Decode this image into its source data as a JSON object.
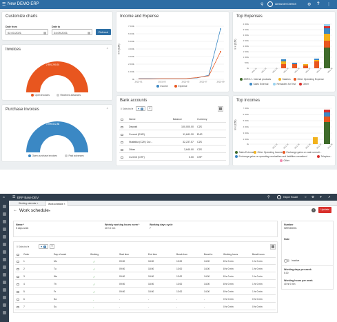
{
  "top": {
    "app_title": "New DEMO ERP",
    "user_name": "Alexander Dietrich",
    "customize": {
      "title": "Customize charts",
      "date_from_label": "Date from",
      "date_from": "02.03.2021",
      "date_to_label": "Date to",
      "date_to": "24.09.2021",
      "refresh": "Refresh"
    },
    "invoices": {
      "title": "Invoices",
      "gauge_value": "2 891 290,91",
      "legend": [
        "Open invoices",
        "Received advances"
      ]
    },
    "purchase_invoices": {
      "title": "Purchase invoices",
      "gauge_value": "3 999 822,88",
      "legend": [
        "Open purchase invoices",
        "Paid advances"
      ]
    },
    "income_expense": {
      "title": "Income and Expense",
      "ylabel": "In k (CZK)",
      "legend": [
        "Income",
        "Expense"
      ]
    },
    "bank_accounts": {
      "title": "Bank accounts",
      "selected": "0 Selected",
      "filter_count": "0",
      "headers": [
        "Name",
        "Balance",
        "Currency"
      ],
      "rows": [
        {
          "name": "Deposit",
          "balance": "100,000.00",
          "currency": "CZK"
        },
        {
          "name": "Current (EUR)",
          "balance": "11,841.20",
          "currency": "EUR"
        },
        {
          "name": "Nustatka (CZK) Cur...",
          "balance": "32,237.57",
          "currency": "CZK"
        },
        {
          "name": "Other",
          "balance": "3,640.00",
          "currency": "CZK"
        },
        {
          "name": "Current (CHF)",
          "balance": "0.00",
          "currency": "CHF"
        }
      ]
    },
    "top_expenses": {
      "title": "Top Expenses",
      "ylabel": "In k (CZK)",
      "legend": [
        "ZDROJ - Internal products",
        "Salaries",
        "Other Operating Expense",
        "Sales External",
        "Remaotes for Test",
        "Other"
      ]
    },
    "top_incomes": {
      "title": "Top Incomes",
      "ylabel": "In k (CZK)",
      "legend": [
        "Sales External",
        "Other Operating Income",
        "Exchange gains on cash unreali...",
        "Exchange gains on operating receivables and liabilities unrealized",
        "Telephon...",
        "Other"
      ]
    }
  },
  "bottom": {
    "app_title": "ERP Base DEV",
    "user_name": "Hayne Hussel",
    "tabs": [
      "Working calendar",
      "Work schedule"
    ],
    "page_title": "Work schedule",
    "update_button": "Update",
    "form": {
      "name_label": "Name *",
      "name_value": "5 days week",
      "hours_label": "Weekly working hours norm *",
      "hours_value": "40 h 0 min",
      "cycle_label": "Working days cycle",
      "cycle_value": "7"
    },
    "side": {
      "number_label": "Number",
      "number_value": "WRK000001",
      "note_label": "Note",
      "inactive_label": "Inactive",
      "days_label": "Working days per week",
      "days_value": "5.00",
      "hours_label": "Working hours per week",
      "hours_value": "40 hr 0 min"
    },
    "grid": {
      "selected": "0 Selected",
      "filter_count": "0",
      "headers": [
        "Order",
        "Day of week",
        "Working",
        "Start time",
        "End time",
        "Break from",
        "Break to",
        "Working hours",
        "Break hours"
      ],
      "rows": [
        {
          "order": "1",
          "day": "Mo",
          "working": true,
          "start": "09:00",
          "end": "18:00",
          "bfrom": "13:00",
          "bto": "14:00",
          "wh": "8 hr 0 min",
          "bh": "1 hr 0 min"
        },
        {
          "order": "2",
          "day": "Tu",
          "working": true,
          "start": "09:00",
          "end": "18:00",
          "bfrom": "13:00",
          "bto": "14:00",
          "wh": "8 hr 0 min",
          "bh": "1 hr 0 min"
        },
        {
          "order": "3",
          "day": "We",
          "working": true,
          "start": "09:00",
          "end": "18:00",
          "bfrom": "13:00",
          "bto": "14:00",
          "wh": "8 hr 0 min",
          "bh": "1 hr 0 min"
        },
        {
          "order": "4",
          "day": "Th",
          "working": true,
          "start": "09:00",
          "end": "18:00",
          "bfrom": "13:00",
          "bto": "14:00",
          "wh": "8 hr 0 min",
          "bh": "1 hr 0 min"
        },
        {
          "order": "5",
          "day": "Fr",
          "working": true,
          "start": "09:00",
          "end": "18:00",
          "bfrom": "13:00",
          "bto": "14:00",
          "wh": "8 hr 0 min",
          "bh": "1 hr 0 min"
        },
        {
          "order": "6",
          "day": "Sa",
          "working": false,
          "start": "-",
          "end": "-",
          "bfrom": "-",
          "bto": "-",
          "wh": "0 hr 0 min",
          "bh": "0 hr 0 min"
        },
        {
          "order": "7",
          "day": "Su",
          "working": false,
          "start": "-",
          "end": "-",
          "bfrom": "-",
          "bto": "-",
          "wh": "0 hr 0 min",
          "bh": "0 hr 0 min"
        }
      ]
    }
  },
  "colors": {
    "topbar": "#2e6da4",
    "darkbar": "#2f3d4c",
    "orange": "#e8561f",
    "blue": "#3b88c4",
    "green": "#3f6b2b",
    "red": "#d9302c"
  }
}
